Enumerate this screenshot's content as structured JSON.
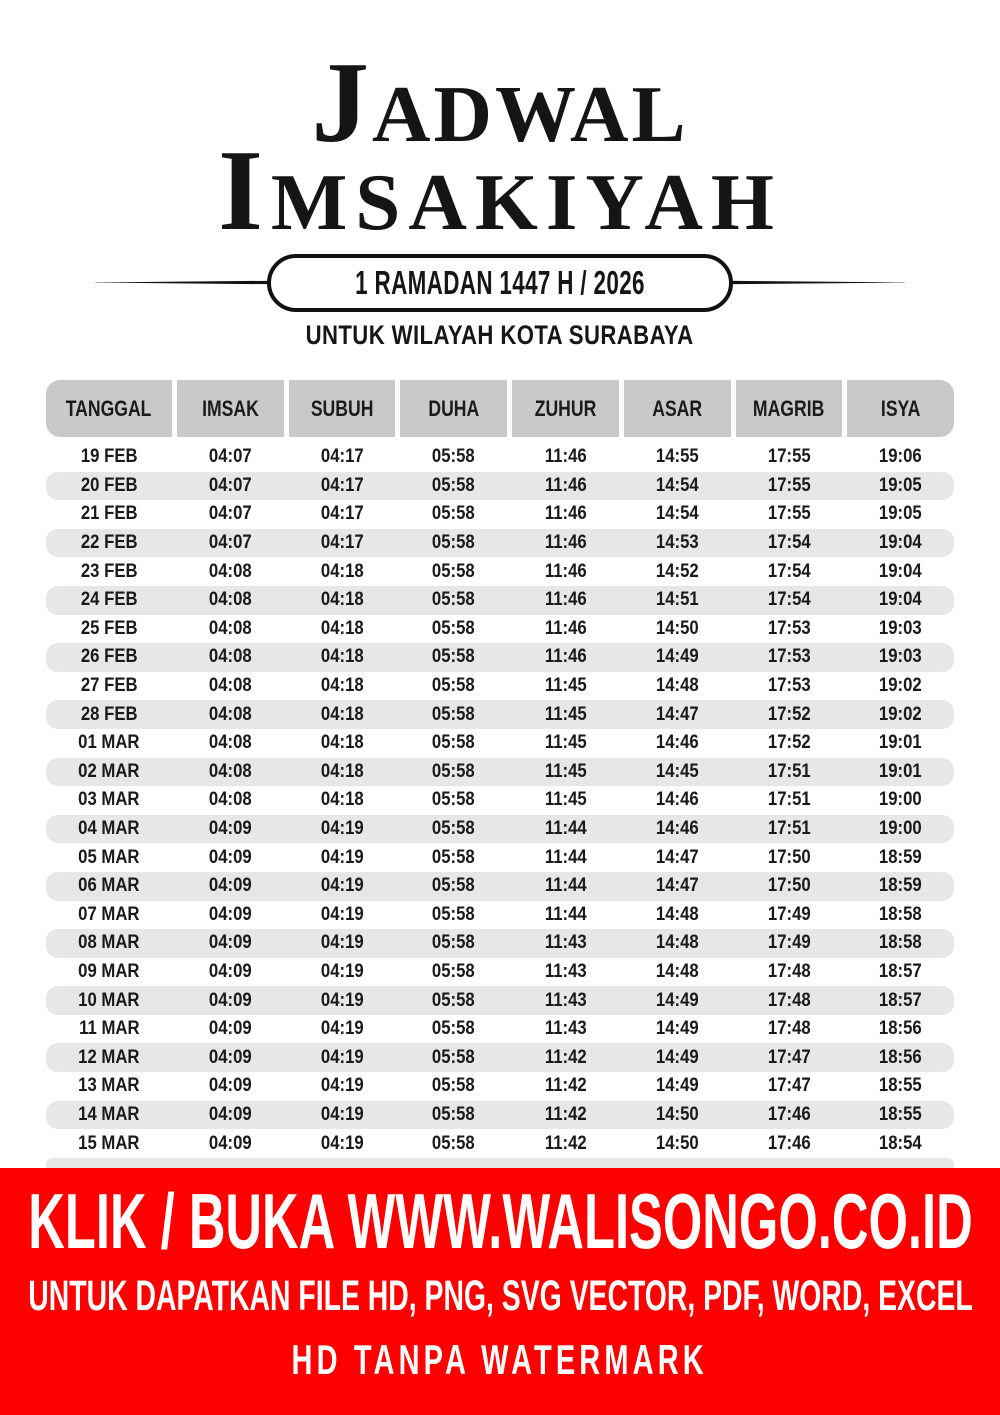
{
  "header": {
    "title_line1": "Jadwal",
    "title_line2": "Imsakiyah",
    "badge_label": "1 RAMADAN 1447 H / 2026",
    "subtitle": "UNTUK WILAYAH KOTA SURABAYA"
  },
  "table": {
    "columns": [
      "TANGGAL",
      "IMSAK",
      "SUBUH",
      "DUHA",
      "ZUHUR",
      "ASAR",
      "MAGRIB",
      "ISYA"
    ],
    "rows": [
      [
        "19 FEB",
        "04:07",
        "04:17",
        "05:58",
        "11:46",
        "14:55",
        "17:55",
        "19:06"
      ],
      [
        "20 FEB",
        "04:07",
        "04:17",
        "05:58",
        "11:46",
        "14:54",
        "17:55",
        "19:05"
      ],
      [
        "21 FEB",
        "04:07",
        "04:17",
        "05:58",
        "11:46",
        "14:54",
        "17:55",
        "19:05"
      ],
      [
        "22 FEB",
        "04:07",
        "04:17",
        "05:58",
        "11:46",
        "14:53",
        "17:54",
        "19:04"
      ],
      [
        "23 FEB",
        "04:08",
        "04:18",
        "05:58",
        "11:46",
        "14:52",
        "17:54",
        "19:04"
      ],
      [
        "24 FEB",
        "04:08",
        "04:18",
        "05:58",
        "11:46",
        "14:51",
        "17:54",
        "19:04"
      ],
      [
        "25 FEB",
        "04:08",
        "04:18",
        "05:58",
        "11:46",
        "14:50",
        "17:53",
        "19:03"
      ],
      [
        "26 FEB",
        "04:08",
        "04:18",
        "05:58",
        "11:46",
        "14:49",
        "17:53",
        "19:03"
      ],
      [
        "27 FEB",
        "04:08",
        "04:18",
        "05:58",
        "11:45",
        "14:48",
        "17:53",
        "19:02"
      ],
      [
        "28 FEB",
        "04:08",
        "04:18",
        "05:58",
        "11:45",
        "14:47",
        "17:52",
        "19:02"
      ],
      [
        "01 MAR",
        "04:08",
        "04:18",
        "05:58",
        "11:45",
        "14:46",
        "17:52",
        "19:01"
      ],
      [
        "02 MAR",
        "04:08",
        "04:18",
        "05:58",
        "11:45",
        "14:45",
        "17:51",
        "19:01"
      ],
      [
        "03 MAR",
        "04:08",
        "04:18",
        "05:58",
        "11:45",
        "14:46",
        "17:51",
        "19:00"
      ],
      [
        "04 MAR",
        "04:09",
        "04:19",
        "05:58",
        "11:44",
        "14:46",
        "17:51",
        "19:00"
      ],
      [
        "05 MAR",
        "04:09",
        "04:19",
        "05:58",
        "11:44",
        "14:47",
        "17:50",
        "18:59"
      ],
      [
        "06 MAR",
        "04:09",
        "04:19",
        "05:58",
        "11:44",
        "14:47",
        "17:50",
        "18:59"
      ],
      [
        "07 MAR",
        "04:09",
        "04:19",
        "05:58",
        "11:44",
        "14:48",
        "17:49",
        "18:58"
      ],
      [
        "08 MAR",
        "04:09",
        "04:19",
        "05:58",
        "11:43",
        "14:48",
        "17:49",
        "18:58"
      ],
      [
        "09 MAR",
        "04:09",
        "04:19",
        "05:58",
        "11:43",
        "14:48",
        "17:48",
        "18:57"
      ],
      [
        "10 MAR",
        "04:09",
        "04:19",
        "05:58",
        "11:43",
        "14:49",
        "17:48",
        "18:57"
      ],
      [
        "11 MAR",
        "04:09",
        "04:19",
        "05:58",
        "11:43",
        "14:49",
        "17:48",
        "18:56"
      ],
      [
        "12 MAR",
        "04:09",
        "04:19",
        "05:58",
        "11:42",
        "14:49",
        "17:47",
        "18:56"
      ],
      [
        "13 MAR",
        "04:09",
        "04:19",
        "05:58",
        "11:42",
        "14:49",
        "17:47",
        "18:55"
      ],
      [
        "14 MAR",
        "04:09",
        "04:19",
        "05:58",
        "11:42",
        "14:50",
        "17:46",
        "18:55"
      ],
      [
        "15 MAR",
        "04:09",
        "04:19",
        "05:58",
        "11:42",
        "14:50",
        "17:46",
        "18:54"
      ]
    ],
    "partial_next_row_visible": true
  },
  "banner": {
    "line1": "KLIK / BUKA WWW.WALISONGO.CO.ID",
    "line2": "UNTUK DAPATKAN FILE HD, PNG, SVG VECTOR, PDF, WORD, EXCEL",
    "line3": "HD TANPA WATERMARK",
    "url": "WWW.WALISONGO.CO.ID"
  },
  "colors": {
    "ink": "#161616",
    "header_cell_gray": "#c9c9c9",
    "row_stripe_gray": "#e7e7e7",
    "banner_red": "#ff0000",
    "banner_text": "#ffffff"
  }
}
